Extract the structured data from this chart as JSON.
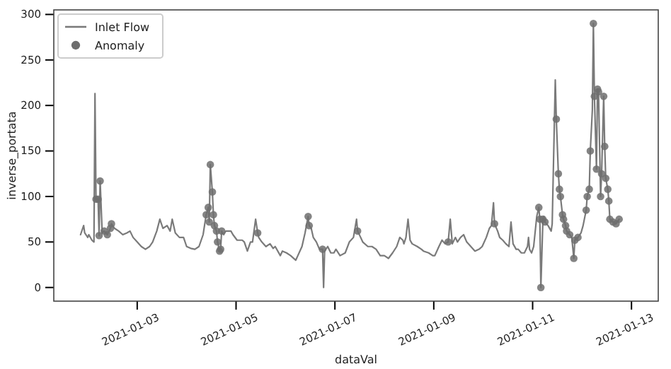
{
  "chart_data": {
    "type": "line",
    "xlabel": "dataVal",
    "ylabel": "inverse_portata",
    "xlim": [
      "2021-01-01T07:30",
      "2021-01-13T13:00"
    ],
    "xticks": [
      "2021-01-03",
      "2021-01-05",
      "2021-01-07",
      "2021-01-09",
      "2021-01-11",
      "2021-01-13"
    ],
    "ylim": [
      -15,
      305
    ],
    "yticks": [
      0,
      50,
      100,
      150,
      200,
      250,
      300
    ],
    "grid": false,
    "legend": "top left",
    "series": [
      {
        "name": "Inlet Flow",
        "type": "line",
        "color": "#7a7a7a",
        "marker": "none",
        "line_style": "solid",
        "x": [
          "2021-01-01T20:30",
          "2021-01-01T22:00",
          "2021-01-01T22:30",
          "2021-01-02T00:00",
          "2021-01-02T00:30",
          "2021-01-02T02:00",
          "2021-01-02T03:00",
          "2021-01-02T03:30",
          "2021-01-02T04:00",
          "2021-01-02T05:00",
          "2021-01-02T05:30",
          "2021-01-02T06:00",
          "2021-01-02T07:00",
          "2021-01-02T08:00",
          "2021-01-02T09:30",
          "2021-01-02T11:00",
          "2021-01-02T11:30",
          "2021-01-02T13:00",
          "2021-01-02T15:00",
          "2021-01-02T17:00",
          "2021-01-02T19:00",
          "2021-01-02T20:30",
          "2021-01-02T22:00",
          "2021-01-03T00:00",
          "2021-01-03T02:00",
          "2021-01-03T04:00",
          "2021-01-03T06:00",
          "2021-01-03T07:30",
          "2021-01-03T09:30",
          "2021-01-03T11:00",
          "2021-01-03T12:30",
          "2021-01-03T14:30",
          "2021-01-03T16:00",
          "2021-01-03T17:00",
          "2021-01-03T18:30",
          "2021-01-03T20:30",
          "2021-01-03T22:30",
          "2021-01-04T00:00",
          "2021-01-04T02:00",
          "2021-01-04T04:00",
          "2021-01-04T06:00",
          "2021-01-04T08:00",
          "2021-01-04T09:30",
          "2021-01-04T10:30",
          "2021-01-04T11:00",
          "2021-01-04T11:30",
          "2021-01-04T12:30",
          "2021-01-04T13:00",
          "2021-01-04T13:30",
          "2021-01-04T14:30",
          "2021-01-04T15:00",
          "2021-01-04T16:00",
          "2021-01-04T16:30",
          "2021-01-04T17:00",
          "2021-01-04T18:00",
          "2021-01-04T19:00",
          "2021-01-04T21:30",
          "2021-01-04T22:30",
          "2021-01-05T00:30",
          "2021-01-05T03:00",
          "2021-01-05T04:00",
          "2021-01-05T05:30",
          "2021-01-05T07:00",
          "2021-01-05T08:00",
          "2021-01-05T09:30",
          "2021-01-05T10:30",
          "2021-01-05T11:00",
          "2021-01-05T12:30",
          "2021-01-05T14:30",
          "2021-01-05T16:30",
          "2021-01-05T18:00",
          "2021-01-05T19:00",
          "2021-01-05T21:30",
          "2021-01-05T22:30",
          "2021-01-06T00:30",
          "2021-01-06T02:30",
          "2021-01-06T05:00",
          "2021-01-06T06:00",
          "2021-01-06T08:00",
          "2021-01-06T09:30",
          "2021-01-06T11:00",
          "2021-01-06T11:30",
          "2021-01-06T12:30",
          "2021-01-06T13:30",
          "2021-01-06T15:00",
          "2021-01-06T16:30",
          "2021-01-06T18:00",
          "2021-01-06T18:30",
          "2021-01-06T19:00",
          "2021-01-06T20:30",
          "2021-01-06T22:00",
          "2021-01-06T23:30",
          "2021-01-07T00:30",
          "2021-01-07T02:30",
          "2021-01-07T05:00",
          "2021-01-07T07:00",
          "2021-01-07T09:00",
          "2021-01-07T10:30",
          "2021-01-07T11:00",
          "2021-01-07T12:30",
          "2021-01-07T13:30",
          "2021-01-07T16:00",
          "2021-01-07T18:00",
          "2021-01-07T20:00",
          "2021-01-07T22:00",
          "2021-01-08T00:00",
          "2021-01-08T02:00",
          "2021-01-08T04:00",
          "2021-01-08T06:00",
          "2021-01-08T07:30",
          "2021-01-08T09:00",
          "2021-01-08T09:30",
          "2021-01-08T10:30",
          "2021-01-08T11:30",
          "2021-01-08T12:30",
          "2021-01-08T13:30",
          "2021-01-08T16:00",
          "2021-01-08T18:00",
          "2021-01-08T19:00",
          "2021-01-08T21:30",
          "2021-01-08T23:30",
          "2021-01-09T00:30",
          "2021-01-09T02:30",
          "2021-01-09T04:00",
          "2021-01-09T05:30",
          "2021-01-09T07:00",
          "2021-01-09T08:00",
          "2021-01-09T09:00",
          "2021-01-09T10:30",
          "2021-01-09T11:30",
          "2021-01-09T13:00",
          "2021-01-09T14:30",
          "2021-01-09T16:00",
          "2021-01-09T18:00",
          "2021-01-09T20:00",
          "2021-01-09T22:00",
          "2021-01-09T23:30",
          "2021-01-10T01:30",
          "2021-01-10T03:00",
          "2021-01-10T04:00",
          "2021-01-10T05:00",
          "2021-01-10T05:30",
          "2021-01-10T07:00",
          "2021-01-10T08:00",
          "2021-01-10T09:30",
          "2021-01-10T11:00",
          "2021-01-10T12:30",
          "2021-01-10T13:30",
          "2021-01-10T14:30",
          "2021-01-10T16:00",
          "2021-01-10T17:00",
          "2021-01-10T18:30",
          "2021-01-10T20:00",
          "2021-01-10T21:30",
          "2021-01-10T22:00",
          "2021-01-10T22:30",
          "2021-01-10T23:30",
          "2021-01-11T00:30",
          "2021-01-11T02:00",
          "2021-01-11T03:00",
          "2021-01-11T03:30",
          "2021-01-11T04:00",
          "2021-01-11T05:00",
          "2021-01-11T05:30",
          "2021-01-11T06:00",
          "2021-01-11T07:30",
          "2021-01-11T09:00",
          "2021-01-11T09:30",
          "2021-01-11T11:00",
          "2021-01-11T11:30",
          "2021-01-11T12:30",
          "2021-01-11T13:00",
          "2021-01-11T13:30",
          "2021-01-11T14:30",
          "2021-01-11T15:00",
          "2021-01-11T16:00",
          "2021-01-11T16:30",
          "2021-01-11T18:00",
          "2021-01-11T19:00",
          "2021-01-11T20:00",
          "2021-01-11T20:30",
          "2021-01-11T22:00",
          "2021-01-11T23:30",
          "2021-01-12T00:30",
          "2021-01-12T02:00",
          "2021-01-12T02:30",
          "2021-01-12T03:30",
          "2021-01-12T04:00",
          "2021-01-12T05:00",
          "2021-01-12T05:30",
          "2021-01-12T06:00",
          "2021-01-12T07:00",
          "2021-01-12T07:30",
          "2021-01-12T08:00",
          "2021-01-12T09:00",
          "2021-01-12T09:30",
          "2021-01-12T10:30",
          "2021-01-12T11:00",
          "2021-01-12T11:30",
          "2021-01-12T12:30",
          "2021-01-12T13:00",
          "2021-01-12T13:30",
          "2021-01-12T15:00",
          "2021-01-12T16:30",
          "2021-01-12T18:00"
        ],
        "values": [
          58,
          68,
          60,
          55,
          58,
          52,
          50,
          213,
          97,
          97,
          57,
          117,
          60,
          62,
          58,
          65,
          70,
          65,
          62,
          58,
          60,
          62,
          55,
          50,
          45,
          42,
          45,
          50,
          62,
          75,
          65,
          68,
          62,
          75,
          60,
          55,
          55,
          45,
          43,
          42,
          45,
          58,
          80,
          88,
          72,
          135,
          105,
          80,
          68,
          62,
          50,
          40,
          42,
          62,
          58,
          62,
          62,
          58,
          52,
          52,
          50,
          40,
          50,
          50,
          75,
          60,
          55,
          50,
          45,
          48,
          43,
          45,
          35,
          40,
          38,
          35,
          30,
          35,
          45,
          60,
          78,
          68,
          65,
          55,
          50,
          42,
          42,
          0,
          40,
          45,
          38,
          38,
          42,
          35,
          38,
          50,
          55,
          75,
          62,
          55,
          50,
          45,
          45,
          42,
          35,
          35,
          32,
          38,
          45,
          55,
          52,
          48,
          55,
          75,
          52,
          48,
          45,
          42,
          40,
          38,
          35,
          35,
          45,
          52,
          48,
          50,
          75,
          48,
          55,
          50,
          55,
          58,
          50,
          45,
          40,
          42,
          45,
          55,
          65,
          68,
          93,
          70,
          62,
          55,
          52,
          48,
          45,
          72,
          48,
          42,
          42,
          38,
          38,
          45,
          55,
          42,
          38,
          45,
          78,
          88,
          75,
          0,
          75,
          78,
          72,
          68,
          62,
          70,
          228,
          185,
          125,
          108,
          100,
          80,
          75,
          68,
          62,
          58,
          55,
          32,
          52,
          55,
          60,
          68,
          85,
          100,
          108,
          150,
          195,
          290,
          210,
          130,
          218,
          215,
          100,
          125,
          210,
          155,
          120,
          108,
          95,
          75,
          72,
          70,
          75
        ]
      },
      {
        "name": "Anomaly",
        "type": "scatter",
        "color": "#6e6e6e",
        "marker": "circle",
        "x": [
          "2021-01-02T04:00",
          "2021-01-02T05:00",
          "2021-01-02T05:30",
          "2021-01-02T06:00",
          "2021-01-02T08:00",
          "2021-01-02T09:30",
          "2021-01-02T11:00",
          "2021-01-02T11:30",
          "2021-01-04T09:30",
          "2021-01-04T10:30",
          "2021-01-04T11:00",
          "2021-01-04T11:30",
          "2021-01-04T12:30",
          "2021-01-04T13:00",
          "2021-01-04T13:30",
          "2021-01-04T14:30",
          "2021-01-04T15:00",
          "2021-01-04T16:00",
          "2021-01-04T16:30",
          "2021-01-04T17:00",
          "2021-01-05T10:30",
          "2021-01-06T11:00",
          "2021-01-06T11:30",
          "2021-01-06T18:00",
          "2021-01-07T11:00",
          "2021-01-09T07:00",
          "2021-01-10T05:30",
          "2021-01-11T03:00",
          "2021-01-11T03:30",
          "2021-01-11T04:00",
          "2021-01-11T05:00",
          "2021-01-11T06:00",
          "2021-01-11T11:30",
          "2021-01-11T12:30",
          "2021-01-11T13:00",
          "2021-01-11T13:30",
          "2021-01-11T14:30",
          "2021-01-11T15:00",
          "2021-01-11T16:00",
          "2021-01-11T16:30",
          "2021-01-11T18:00",
          "2021-01-11T20:00",
          "2021-01-11T20:30",
          "2021-01-11T22:00",
          "2021-01-12T02:00",
          "2021-01-12T02:30",
          "2021-01-12T03:30",
          "2021-01-12T04:00",
          "2021-01-12T05:30",
          "2021-01-12T06:00",
          "2021-01-12T07:00",
          "2021-01-12T07:30",
          "2021-01-12T08:00",
          "2021-01-12T09:00",
          "2021-01-12T09:30",
          "2021-01-12T10:30",
          "2021-01-12T11:00",
          "2021-01-12T11:30",
          "2021-01-12T12:30",
          "2021-01-12T13:00",
          "2021-01-12T13:30",
          "2021-01-12T15:00",
          "2021-01-12T16:30",
          "2021-01-12T18:00"
        ],
        "values": [
          97,
          97,
          57,
          117,
          62,
          58,
          65,
          70,
          80,
          88,
          72,
          135,
          105,
          80,
          68,
          62,
          50,
          40,
          42,
          62,
          60,
          78,
          68,
          42,
          62,
          50,
          70,
          88,
          75,
          0,
          75,
          72,
          185,
          125,
          108,
          100,
          80,
          75,
          68,
          62,
          58,
          32,
          52,
          55,
          85,
          100,
          108,
          150,
          290,
          210,
          130,
          218,
          215,
          100,
          125,
          210,
          155,
          120,
          108,
          95,
          75,
          72,
          70,
          75
        ]
      }
    ]
  }
}
